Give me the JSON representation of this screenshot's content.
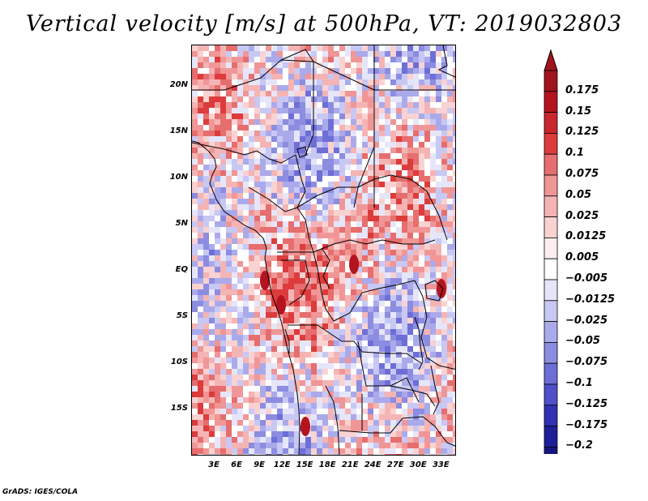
{
  "title": "Vertical velocity [m/s] at 500hPa, VT: 2019032803",
  "credit": "GrADS: IGES/COLA",
  "map": {
    "lon_range": [
      0,
      35
    ],
    "lat_range": [
      -20,
      24.5
    ],
    "lat_labels": [
      {
        "lat": 20,
        "text": "20N"
      },
      {
        "lat": 15,
        "text": "15N"
      },
      {
        "lat": 10,
        "text": "10N"
      },
      {
        "lat": 5,
        "text": "5N"
      },
      {
        "lat": 0,
        "text": "EQ"
      },
      {
        "lat": -5,
        "text": "5S"
      },
      {
        "lat": -10,
        "text": "10S"
      },
      {
        "lat": -15,
        "text": "15S"
      }
    ],
    "lon_labels": [
      {
        "lon": 3,
        "text": "3E"
      },
      {
        "lon": 6,
        "text": "6E"
      },
      {
        "lon": 9,
        "text": "9E"
      },
      {
        "lon": 12,
        "text": "12E"
      },
      {
        "lon": 15,
        "text": "15E"
      },
      {
        "lon": 18,
        "text": "18E"
      },
      {
        "lon": 21,
        "text": "21E"
      },
      {
        "lon": 24,
        "text": "24E"
      },
      {
        "lon": 27,
        "text": "27E"
      },
      {
        "lon": 30,
        "text": "30E"
      },
      {
        "lon": 33,
        "text": "33E"
      }
    ],
    "field_seed": 20190328
  },
  "colorbar": {
    "labels": [
      "0.175",
      "0.15",
      "0.125",
      "0.1",
      "0.075",
      "0.05",
      "0.025",
      "0.0125",
      "0.005",
      "−0.005",
      "−0.0125",
      "−0.025",
      "−0.05",
      "−0.075",
      "−0.1",
      "−0.125",
      "−0.175",
      "−0.2"
    ],
    "colors": [
      "#a0141e",
      "#b4141e",
      "#c8282d",
      "#dc3c3c",
      "#e66e6e",
      "#f09696",
      "#f5b4b4",
      "#fad2d2",
      "#fdeeee",
      "#ffffff",
      "#e6e6fa",
      "#c8c8f5",
      "#aaaaeb",
      "#8c8ce1",
      "#6e6ed7",
      "#5050c8",
      "#3232b4",
      "#1e1e96",
      "#14147d"
    ],
    "top_color": "#a0141e",
    "bottom_color": "#14147d"
  }
}
